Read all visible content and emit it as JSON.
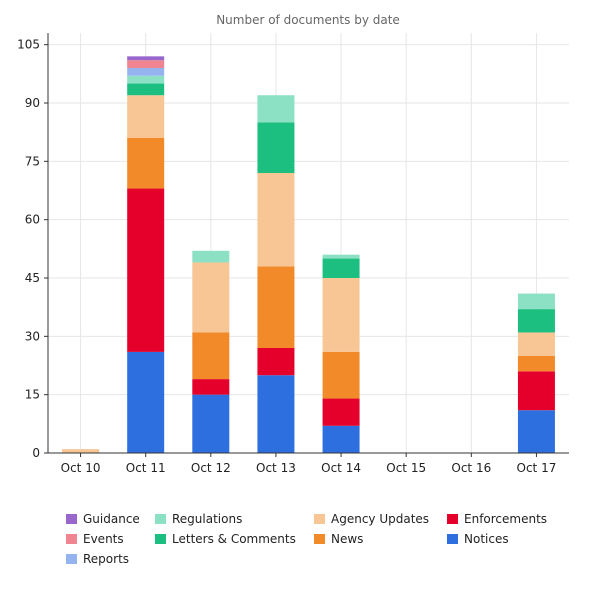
{
  "chart_data": {
    "type": "bar",
    "stacked": true,
    "title": "Number of documents by date",
    "xlabel": "",
    "ylabel": "",
    "categories": [
      "Oct 10",
      "Oct 11",
      "Oct 12",
      "Oct 13",
      "Oct 14",
      "Oct 15",
      "Oct 16",
      "Oct 17"
    ],
    "ylim": [
      0,
      108
    ],
    "yticks": [
      0,
      15,
      30,
      45,
      60,
      75,
      90,
      105
    ],
    "grid": true,
    "legend_position": "bottom",
    "series": [
      {
        "name": "Notices",
        "color": "#2e6fe0",
        "values": [
          0,
          26,
          15,
          20,
          7,
          0,
          0,
          11
        ]
      },
      {
        "name": "Enforcements",
        "color": "#e4002b",
        "values": [
          0,
          42,
          4,
          7,
          7,
          0,
          0,
          10
        ]
      },
      {
        "name": "News",
        "color": "#f28a2a",
        "values": [
          0,
          13,
          12,
          21,
          12,
          0,
          0,
          4
        ]
      },
      {
        "name": "Agency Updates",
        "color": "#f8c594",
        "values": [
          1,
          11,
          18,
          24,
          19,
          0,
          0,
          6
        ]
      },
      {
        "name": "Letters & Comments",
        "color": "#1dbf80",
        "values": [
          0,
          3,
          0,
          13,
          5,
          0,
          0,
          6
        ]
      },
      {
        "name": "Regulations",
        "color": "#8ce0c4",
        "values": [
          0,
          2,
          3,
          7,
          1,
          0,
          0,
          4
        ]
      },
      {
        "name": "Reports",
        "color": "#95b4ef",
        "values": [
          0,
          2,
          0,
          0,
          0,
          0,
          0,
          0
        ]
      },
      {
        "name": "Events",
        "color": "#f08490",
        "values": [
          0,
          2,
          0,
          0,
          0,
          0,
          0,
          0
        ]
      },
      {
        "name": "Guidance",
        "color": "#9966cc",
        "values": [
          0,
          1,
          0,
          0,
          0,
          0,
          0,
          0
        ]
      }
    ],
    "legend_order": [
      "Guidance",
      "Regulations",
      "Agency Updates",
      "Enforcements",
      "Events",
      "Letters & Comments",
      "News",
      "Notices",
      "Reports"
    ]
  }
}
